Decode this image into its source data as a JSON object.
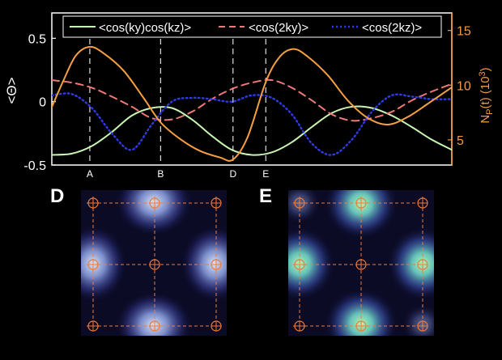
{
  "chart_data": [
    {
      "type": "line",
      "ylabel_left": "<Θ>",
      "ylabel_right_main": "N",
      "ylabel_right_sub": "P",
      "ylabel_right_rest": "(t) (10",
      "ylabel_right_sup": "3",
      "ylabel_right_end": ")",
      "ylim_left": [
        -0.5,
        0.7
      ],
      "yticks_left": [
        {
          "value": 0.5,
          "label": "0.5"
        },
        {
          "value": 0,
          "label": "0"
        },
        {
          "value": -0.5,
          "label": "-0.5"
        }
      ],
      "ylim_right": [
        2.7,
        16.6
      ],
      "yticks_right": [
        {
          "value": 15,
          "label": "15"
        },
        {
          "value": 10,
          "label": "10"
        },
        {
          "value": 5,
          "label": "5"
        }
      ],
      "xlim": [
        0,
        1
      ],
      "markers": [
        {
          "label": "A",
          "x": 0.095
        },
        {
          "label": "B",
          "x": 0.272
        },
        {
          "label": "D",
          "x": 0.453
        },
        {
          "label": "E",
          "x": 0.535
        }
      ],
      "legend_position": "top",
      "series": [
        {
          "name": "<cos(ky)cos(kz)>",
          "axis": "left",
          "color": "#c8f5b4",
          "style": "solid",
          "x": [
            0,
            0.05,
            0.1,
            0.15,
            0.2,
            0.25,
            0.3,
            0.35,
            0.4,
            0.45,
            0.5,
            0.55,
            0.6,
            0.65,
            0.7,
            0.75,
            0.8,
            0.85,
            0.9,
            0.95,
            1.0
          ],
          "y": [
            -0.42,
            -0.41,
            -0.35,
            -0.24,
            -0.11,
            -0.05,
            -0.05,
            -0.14,
            -0.27,
            -0.38,
            -0.42,
            -0.4,
            -0.32,
            -0.2,
            -0.09,
            -0.04,
            -0.05,
            -0.11,
            -0.2,
            -0.3,
            -0.38
          ]
        },
        {
          "name": "<cos(2ky)>",
          "axis": "left",
          "color": "#f07878",
          "style": "dashed",
          "x": [
            0,
            0.05,
            0.1,
            0.15,
            0.2,
            0.25,
            0.3,
            0.35,
            0.4,
            0.45,
            0.5,
            0.55,
            0.6,
            0.65,
            0.7,
            0.75,
            0.8,
            0.85,
            0.9,
            0.95,
            1.0
          ],
          "y": [
            0.17,
            0.15,
            0.11,
            0.04,
            -0.04,
            -0.13,
            -0.14,
            -0.08,
            0.02,
            0.1,
            0.15,
            0.17,
            0.11,
            0.01,
            -0.1,
            -0.15,
            -0.13,
            -0.08,
            0.01,
            0.08,
            0.14
          ]
        },
        {
          "name": "<cos(2kz)>",
          "axis": "left",
          "color": "#2f3be8",
          "style": "dotted",
          "x": [
            0,
            0.05,
            0.1,
            0.15,
            0.2,
            0.25,
            0.3,
            0.35,
            0.4,
            0.45,
            0.5,
            0.55,
            0.6,
            0.65,
            0.7,
            0.75,
            0.8,
            0.85,
            0.9,
            0.95,
            1.0
          ],
          "y": [
            0.05,
            0.06,
            -0.05,
            -0.25,
            -0.38,
            -0.18,
            0.0,
            0.03,
            0.02,
            0.0,
            0.05,
            0.03,
            -0.1,
            -0.33,
            -0.42,
            -0.3,
            -0.08,
            0.05,
            0.04,
            0.02,
            0.02
          ]
        },
        {
          "name": "",
          "axis": "right",
          "color": "#f7a040",
          "style": "solid",
          "x": [
            0,
            0.03,
            0.06,
            0.095,
            0.13,
            0.18,
            0.23,
            0.272,
            0.32,
            0.37,
            0.42,
            0.453,
            0.49,
            0.535,
            0.57,
            0.605,
            0.64,
            0.69,
            0.74,
            0.79,
            0.84,
            0.89,
            0.94,
            1.0
          ],
          "y": [
            8.0,
            10.5,
            12.7,
            13.5,
            12.9,
            11.3,
            8.8,
            6.6,
            5.1,
            4.0,
            3.4,
            3.2,
            5.3,
            10.3,
            12.6,
            13.3,
            12.6,
            10.9,
            8.6,
            7.0,
            6.4,
            7.1,
            8.3,
            9.8
          ]
        }
      ]
    },
    {
      "type": "heatmap",
      "panel_label": "D",
      "grid_points": 3
    },
    {
      "type": "heatmap",
      "panel_label": "E",
      "grid_points": 3
    }
  ]
}
